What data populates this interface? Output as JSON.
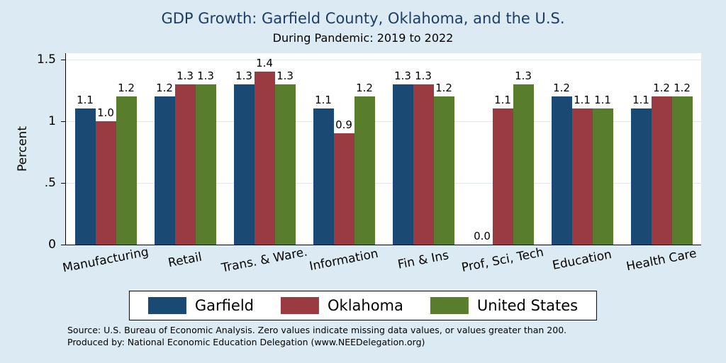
{
  "colors": {
    "background": "#dcebf3",
    "plot_background": "#ffffff",
    "title_text": "#1f3c61",
    "axis_line": "#000000",
    "gridline": "#dde8ee"
  },
  "notes": {
    "line1": "Source: U.S. Bureau of Economic Analysis. Zero values indicate missing data values, or values greater than 200.",
    "line2": "Produced by: National Economic Education Delegation (www.NEEDelegation.org)"
  },
  "chart_data": {
    "type": "bar",
    "title": "GDP Growth: Garfield County, Oklahoma, and the U.S.",
    "subtitle": "During Pandemic: 2019 to 2022",
    "xlabel": "",
    "ylabel": "Percent",
    "ylim": [
      0,
      1.55
    ],
    "grid": true,
    "legend_position": "bottom-center",
    "yticks": [
      {
        "v": 0,
        "label": "0"
      },
      {
        "v": 0.5,
        "label": ".5"
      },
      {
        "v": 1,
        "label": "1"
      },
      {
        "v": 1.5,
        "label": "1.5"
      }
    ],
    "categories": [
      "Manufacturing",
      "Retail",
      "Trans. & Ware.",
      "Information",
      "Fin & Ins",
      "Prof, Sci, Tech",
      "Education",
      "Health Care"
    ],
    "series": [
      {
        "name": "Garfield",
        "color": "#1a4a73",
        "values": [
          1.1,
          1.2,
          1.3,
          1.1,
          1.3,
          0.0,
          1.2,
          1.1
        ]
      },
      {
        "name": "Oklahoma",
        "color": "#993b41",
        "values": [
          1.0,
          1.3,
          1.4,
          0.9,
          1.3,
          1.1,
          1.1,
          1.2
        ]
      },
      {
        "name": "United States",
        "color": "#587e2d",
        "values": [
          1.2,
          1.3,
          1.3,
          1.2,
          1.2,
          1.3,
          1.1,
          1.2
        ]
      }
    ]
  }
}
